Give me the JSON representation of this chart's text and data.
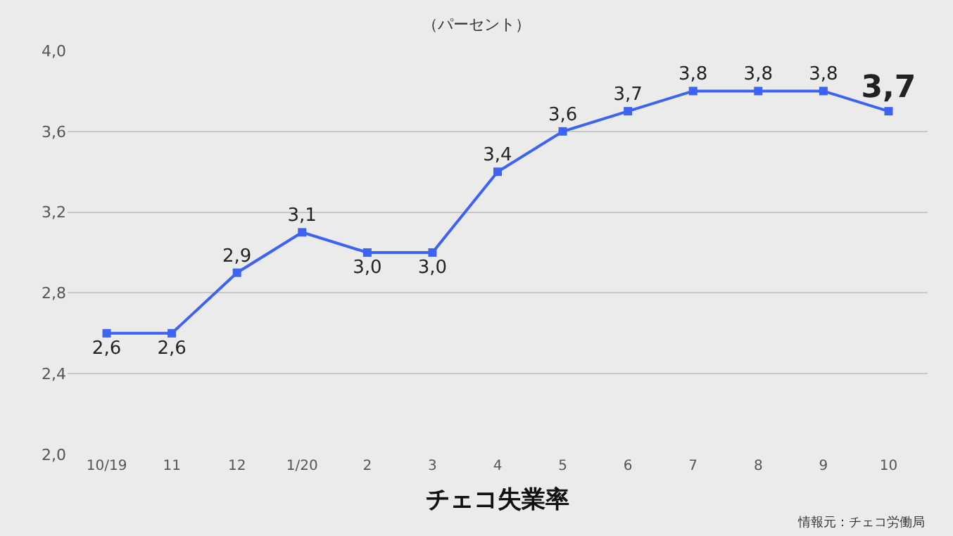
{
  "chart_data": {
    "type": "line",
    "title": "（パーセント）",
    "xlabel": "チェコ失業率",
    "categories": [
      "10/19",
      "11",
      "12",
      "1/20",
      "2",
      "3",
      "4",
      "5",
      "6",
      "7",
      "8",
      "9",
      "10"
    ],
    "series": [
      {
        "color": "#3d63f2",
        "values": [
          2.6,
          2.6,
          2.9,
          3.1,
          3.0,
          3.0,
          3.4,
          3.6,
          3.7,
          3.8,
          3.8,
          3.8,
          3.7
        ],
        "value_labels": [
          "2,6",
          "2,6",
          "2,9",
          "3,1",
          "3,0",
          "3,0",
          "3,4",
          "3,6",
          "3,7",
          "3,8",
          "3,8",
          "3,8",
          "3,7"
        ]
      }
    ],
    "ylim": [
      2.0,
      4.0
    ],
    "yticks": [
      {
        "value": 2.0,
        "label": "2,0"
      },
      {
        "value": 2.4,
        "label": "2,4"
      },
      {
        "value": 2.8,
        "label": "2,8"
      },
      {
        "value": 3.2,
        "label": "3,2"
      },
      {
        "value": 3.6,
        "label": "3,6"
      },
      {
        "value": 4.0,
        "label": "4,0"
      }
    ],
    "grid": "y",
    "marker": "square",
    "line_style": "solid",
    "legend": false,
    "annotations": [
      "情報元：チェコ労働局"
    ]
  }
}
